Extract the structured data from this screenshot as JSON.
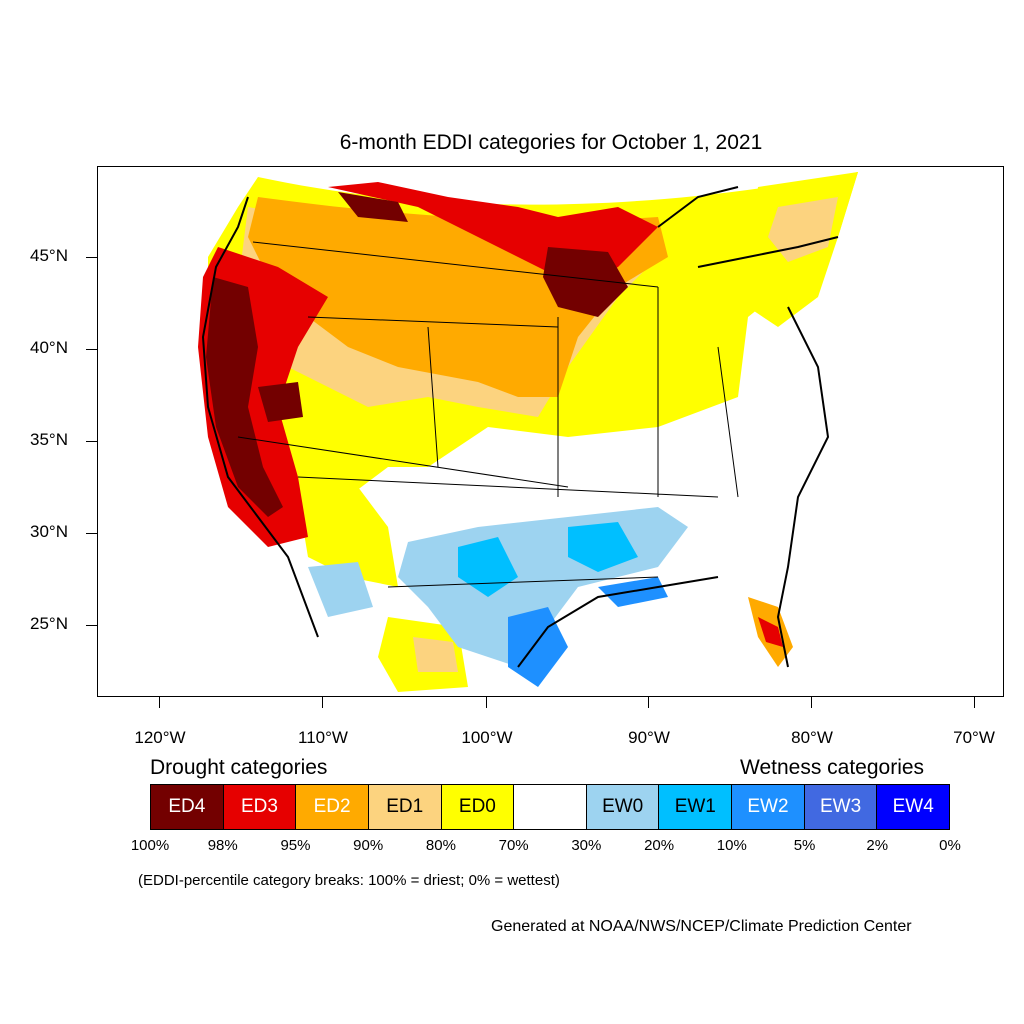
{
  "title": "6-month EDDI categories for October 1, 2021",
  "lat_labels": [
    "45°N",
    "40°N",
    "35°N",
    "30°N",
    "25°N"
  ],
  "lon_labels": [
    "120°W",
    "110°W",
    "100°W",
    "90°W",
    "80°W",
    "70°W"
  ],
  "legend": {
    "drought_heading": "Drought categories",
    "wetness_heading": "Wetness categories",
    "categories": [
      {
        "label": "ED4",
        "color": "#730000",
        "text_color": "#ffffff"
      },
      {
        "label": "ED3",
        "color": "#e60000",
        "text_color": "#ffffff"
      },
      {
        "label": "ED2",
        "color": "#ffaa00",
        "text_color": "#ffffff"
      },
      {
        "label": "ED1",
        "color": "#fcd37f",
        "text_color": "#000000"
      },
      {
        "label": "ED0",
        "color": "#ffff00",
        "text_color": "#000000"
      },
      {
        "label": "",
        "color": "#ffffff",
        "text_color": "#000000"
      },
      {
        "label": "EW0",
        "color": "#9dd3f0",
        "text_color": "#000000"
      },
      {
        "label": "EW1",
        "color": "#00bfff",
        "text_color": "#000000"
      },
      {
        "label": "EW2",
        "color": "#1e90ff",
        "text_color": "#ffffff"
      },
      {
        "label": "EW3",
        "color": "#4169e1",
        "text_color": "#ffffff"
      },
      {
        "label": "EW4",
        "color": "#0000ff",
        "text_color": "#ffffff"
      }
    ],
    "percentiles": [
      "100%",
      "98%",
      "95%",
      "90%",
      "80%",
      "70%",
      "30%",
      "20%",
      "10%",
      "5%",
      "2%",
      "0%"
    ]
  },
  "note": "(EDDI-percentile category breaks: 100% = driest; 0% = wettest)",
  "credit": "Generated at NOAA/NWS/NCEP/Climate Prediction Center"
}
